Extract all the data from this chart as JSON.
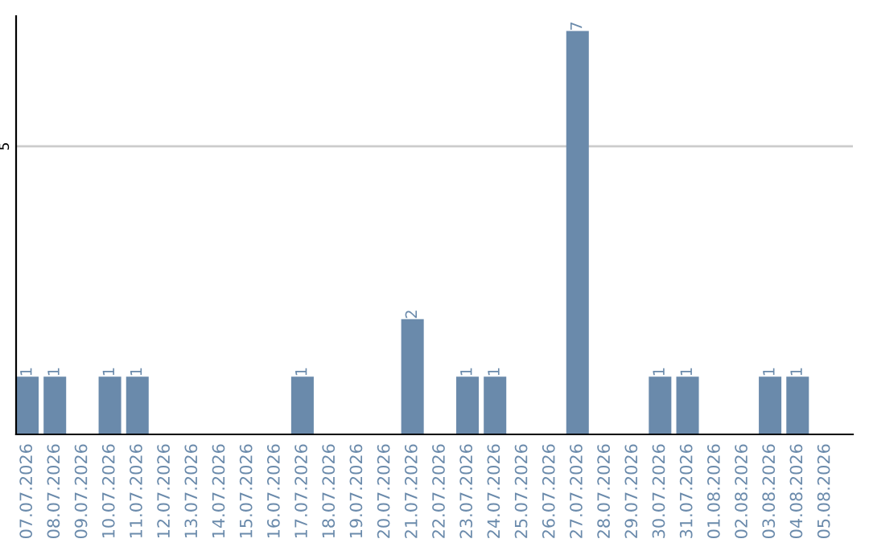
{
  "chart_data": {
    "type": "bar",
    "categories": [
      "07.07.2026",
      "08.07.2026",
      "09.07.2026",
      "10.07.2026",
      "11.07.2026",
      "12.07.2026",
      "13.07.2026",
      "14.07.2026",
      "15.07.2026",
      "16.07.2026",
      "17.07.2026",
      "18.07.2026",
      "19.07.2026",
      "20.07.2026",
      "21.07.2026",
      "22.07.2026",
      "23.07.2026",
      "24.07.2026",
      "25.07.2026",
      "26.07.2026",
      "27.07.2026",
      "28.07.2026",
      "29.07.2026",
      "30.07.2026",
      "31.07.2026",
      "01.08.2026",
      "02.08.2026",
      "03.08.2026",
      "04.08.2026",
      "05.08.2026"
    ],
    "values": [
      1,
      1,
      0,
      1,
      1,
      0,
      0,
      0,
      0,
      0,
      1,
      0,
      0,
      0,
      2,
      0,
      1,
      1,
      0,
      0,
      7,
      0,
      0,
      1,
      1,
      0,
      0,
      1,
      1,
      0
    ],
    "value_labels": [
      "1",
      "1",
      null,
      "1",
      "1",
      null,
      null,
      null,
      null,
      null,
      "1",
      null,
      null,
      null,
      "2",
      null,
      "1",
      "1",
      null,
      null,
      "7",
      null,
      null,
      "1",
      "1",
      null,
      null,
      "1",
      "1",
      null
    ],
    "color": "#6a8aab",
    "ylim": [
      0,
      7.26
    ],
    "yticks": [
      5
    ],
    "grid": "y",
    "legend": false
  }
}
